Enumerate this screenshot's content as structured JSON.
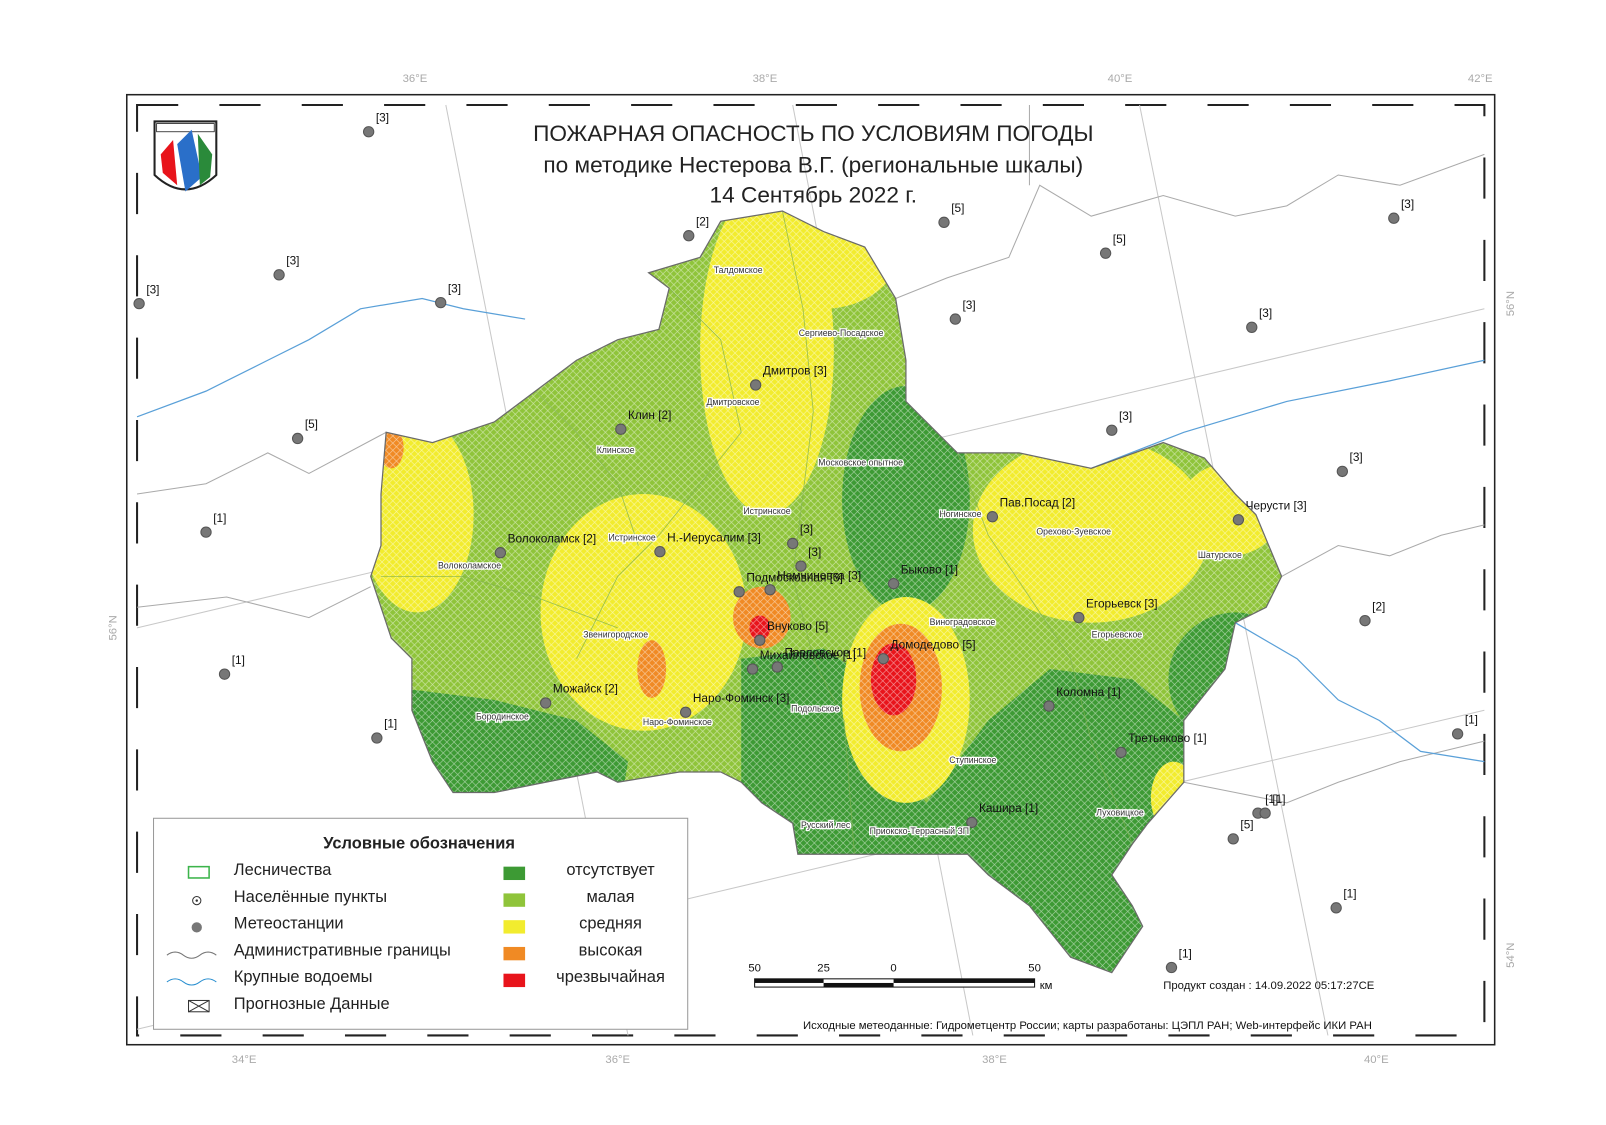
{
  "title": [
    "ПОЖАРНАЯ ОПАСНОСТЬ ПО УСЛОВИЯМ ПОГОДЫ",
    "по методике Нестерова В.Г. (региональные шкалы)",
    "14 Сентябрь 2022 г."
  ],
  "graticule": {
    "top": [
      "36°E",
      "38°E",
      "40°E",
      "42°E"
    ],
    "bottom": [
      "34°E",
      "36°E",
      "38°E",
      "40°E"
    ],
    "left": [
      "56°N"
    ],
    "right": [
      "56°N",
      "54°N"
    ]
  },
  "stations": [
    {
      "label": "[3]"
    },
    {
      "label": "[2]"
    },
    {
      "label": "[5]"
    },
    {
      "label": "[5]"
    },
    {
      "label": "[3]"
    },
    {
      "label": "[3]"
    },
    {
      "label": "[3]"
    },
    {
      "label": "[3]"
    },
    {
      "label": "[3]"
    },
    {
      "label": "[3]"
    },
    {
      "label": "[5]"
    },
    {
      "label": "[3]"
    },
    {
      "label": "[3]"
    },
    {
      "label": "[1]"
    },
    {
      "label": "[2]"
    },
    {
      "label": "[1]"
    },
    {
      "label": "[1]"
    },
    {
      "label": "[1]"
    },
    {
      "label": "[1]"
    },
    {
      "label": "[1]"
    },
    {
      "label": "[5]"
    },
    {
      "label": "[1]"
    },
    {
      "label": "[1]"
    },
    {
      "label": "[3]"
    },
    {
      "label": "[3]"
    },
    {
      "label": "Дмитров [3]"
    },
    {
      "label": "Клин [2]"
    },
    {
      "label": "Пав.Посад [2]"
    },
    {
      "label": "Черусти [3]"
    },
    {
      "label": "Волоколамск [2]"
    },
    {
      "label": "Н.-Иерусалим [3]"
    },
    {
      "label": "Подмосковная [3]"
    },
    {
      "label": "Немчиновка [3]"
    },
    {
      "label": "Быково [1]"
    },
    {
      "label": "Егорьевск [3]"
    },
    {
      "label": "Внуково [5]"
    },
    {
      "label": "Михайловское [1]"
    },
    {
      "label": "Павловское [1]"
    },
    {
      "label": "Домодедово [5]"
    },
    {
      "label": "Можайск [2]"
    },
    {
      "label": "Наро-Фоминск [3]"
    },
    {
      "label": "Коломна [1]"
    },
    {
      "label": "Третьяково [1]"
    },
    {
      "label": "Кашира [1]"
    }
  ],
  "forestries": [
    "Талдомское",
    "Сергиево-Посадское",
    "Дмитровское",
    "Клинское",
    "Московское опытное",
    "Истринское",
    "Ногинское",
    "Орехово-Зуевское",
    "Шатурское",
    "Волоколамское",
    "Истринское",
    "Звенигородское",
    "Виноградовское",
    "Егорьевское",
    "Бородинское",
    "Наро-Фоминское",
    "Подольское",
    "Ступинское",
    "Луховицкое",
    "Русский лес",
    "Приокско-Террасный ЗП"
  ],
  "legend": {
    "title": "Условные обозначения",
    "symbols": [
      "Лесничества",
      "Населённые пункты",
      "Метеостанции",
      "Административные границы",
      "Крупные водоемы",
      "Прогнозные Данные"
    ],
    "classes": [
      "отсутствует",
      "малая",
      "средняя",
      "высокая",
      "чрезвычайная"
    ]
  },
  "scale_bar": {
    "ticks": [
      "50",
      "25",
      "0",
      "50"
    ],
    "unit": "км"
  },
  "product_created": "Продукт создан : 14.09.2022 05:17:27CE",
  "source": "Исходные метеоданные: Гидрометцентр России; карты разработаны: ЦЭПЛ РАН; Web-интерфейс ИКИ РАН"
}
